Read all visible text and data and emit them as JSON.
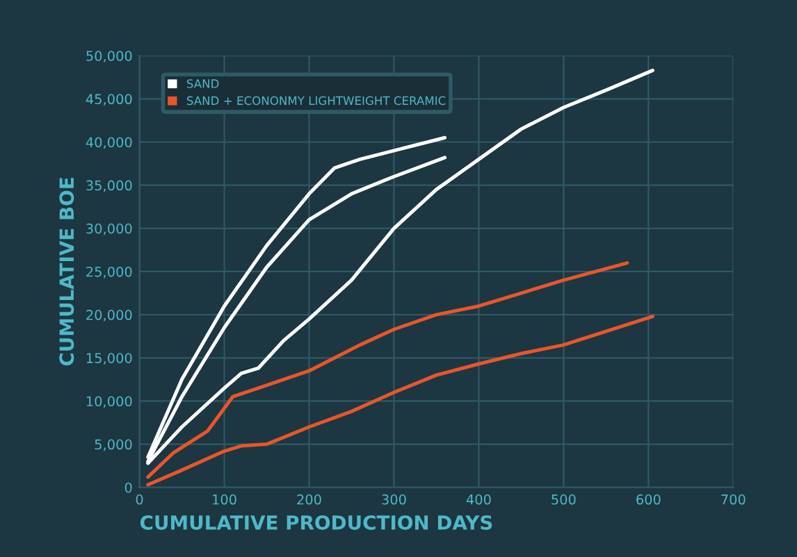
{
  "chart_data": {
    "type": "line",
    "xlabel": "CUMULATIVE PRODUCTION DAYS",
    "ylabel": "CUMULATIVE BOE",
    "xlim": [
      0,
      700
    ],
    "xticks": [
      0,
      100,
      200,
      300,
      400,
      500,
      600,
      700
    ],
    "ylim": [
      0,
      50000
    ],
    "yticks": [
      {
        "value": 0,
        "label": "0"
      },
      {
        "value": 5000,
        "label": "5,000"
      },
      {
        "value": 10000,
        "label": "10,000"
      },
      {
        "value": 15000,
        "label": "15,000"
      },
      {
        "value": 20000,
        "label": "20,000"
      },
      {
        "value": 25000,
        "label": "25,000"
      },
      {
        "value": 30000,
        "label": "30,000"
      },
      {
        "value": 35000,
        "label": "35,000"
      },
      {
        "value": 40000,
        "label": "40,000"
      },
      {
        "value": 45000,
        "label": "45,000"
      },
      {
        "value": 50000,
        "label": "50,000"
      }
    ],
    "grid": true,
    "legend": "top left",
    "marker": "none",
    "line_style": "solid",
    "series": [
      {
        "name": "SAND",
        "color": "#ffffff",
        "x": [
          10,
          50,
          100,
          150,
          200,
          230,
          260,
          300,
          360
        ],
        "values": [
          3500,
          12500,
          21000,
          28000,
          34000,
          37000,
          38000,
          39000,
          40500
        ]
      },
      {
        "color": "#ffffff",
        "x": [
          10,
          50,
          100,
          150,
          200,
          250,
          300,
          360
        ],
        "values": [
          3000,
          10500,
          18500,
          25500,
          31000,
          34000,
          36000,
          38200
        ]
      },
      {
        "color": "#ffffff",
        "x": [
          10,
          50,
          100,
          120,
          140,
          170,
          200,
          250,
          300,
          350,
          400,
          450,
          500,
          550,
          605
        ],
        "values": [
          2800,
          7000,
          11500,
          13200,
          13800,
          17000,
          19500,
          24000,
          30000,
          34500,
          38000,
          41500,
          44000,
          46000,
          48300
        ]
      },
      {
        "name": "SAND + ECONONMY LIGHTWEIGHT CERAMIC",
        "color": "#e8562a",
        "x": [
          10,
          40,
          80,
          110,
          140,
          200,
          260,
          300,
          350,
          400,
          450,
          500,
          575
        ],
        "values": [
          1200,
          4000,
          6500,
          10500,
          11500,
          13500,
          16500,
          18300,
          20000,
          21000,
          22500,
          24000,
          26000
        ]
      },
      {
        "color": "#e8562a",
        "x": [
          10,
          50,
          100,
          120,
          150,
          200,
          250,
          300,
          350,
          400,
          450,
          500,
          605
        ],
        "values": [
          300,
          2000,
          4200,
          4800,
          5000,
          7000,
          8800,
          11000,
          13000,
          14300,
          15500,
          16500,
          19800
        ]
      }
    ]
  }
}
